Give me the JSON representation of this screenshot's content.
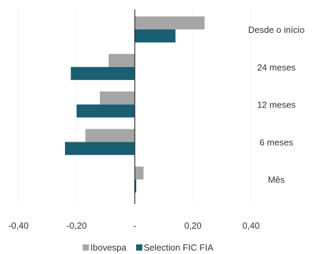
{
  "chart_data": {
    "type": "bar",
    "orientation": "horizontal",
    "categories": [
      "Desde o início",
      "24 meses",
      "12 meses",
      "6 meses",
      "Mês"
    ],
    "series": [
      {
        "name": "Ibovespa",
        "color": "#a6a6a6",
        "values": [
          0.24,
          -0.09,
          -0.12,
          -0.17,
          0.03
        ]
      },
      {
        "name": "Selection FIC FIA",
        "color": "#1a5e72",
        "values": [
          0.14,
          -0.22,
          -0.2,
          -0.24,
          0.005
        ]
      }
    ],
    "xlim": [
      -0.4,
      0.4
    ],
    "xticks": [
      -0.4,
      -0.2,
      0,
      0.2,
      0.4
    ],
    "xtick_labels": [
      "-0,40",
      "-0,20",
      "-",
      "0,20",
      "0,40"
    ],
    "grid": "vertical dotted",
    "legend_position": "bottom"
  }
}
